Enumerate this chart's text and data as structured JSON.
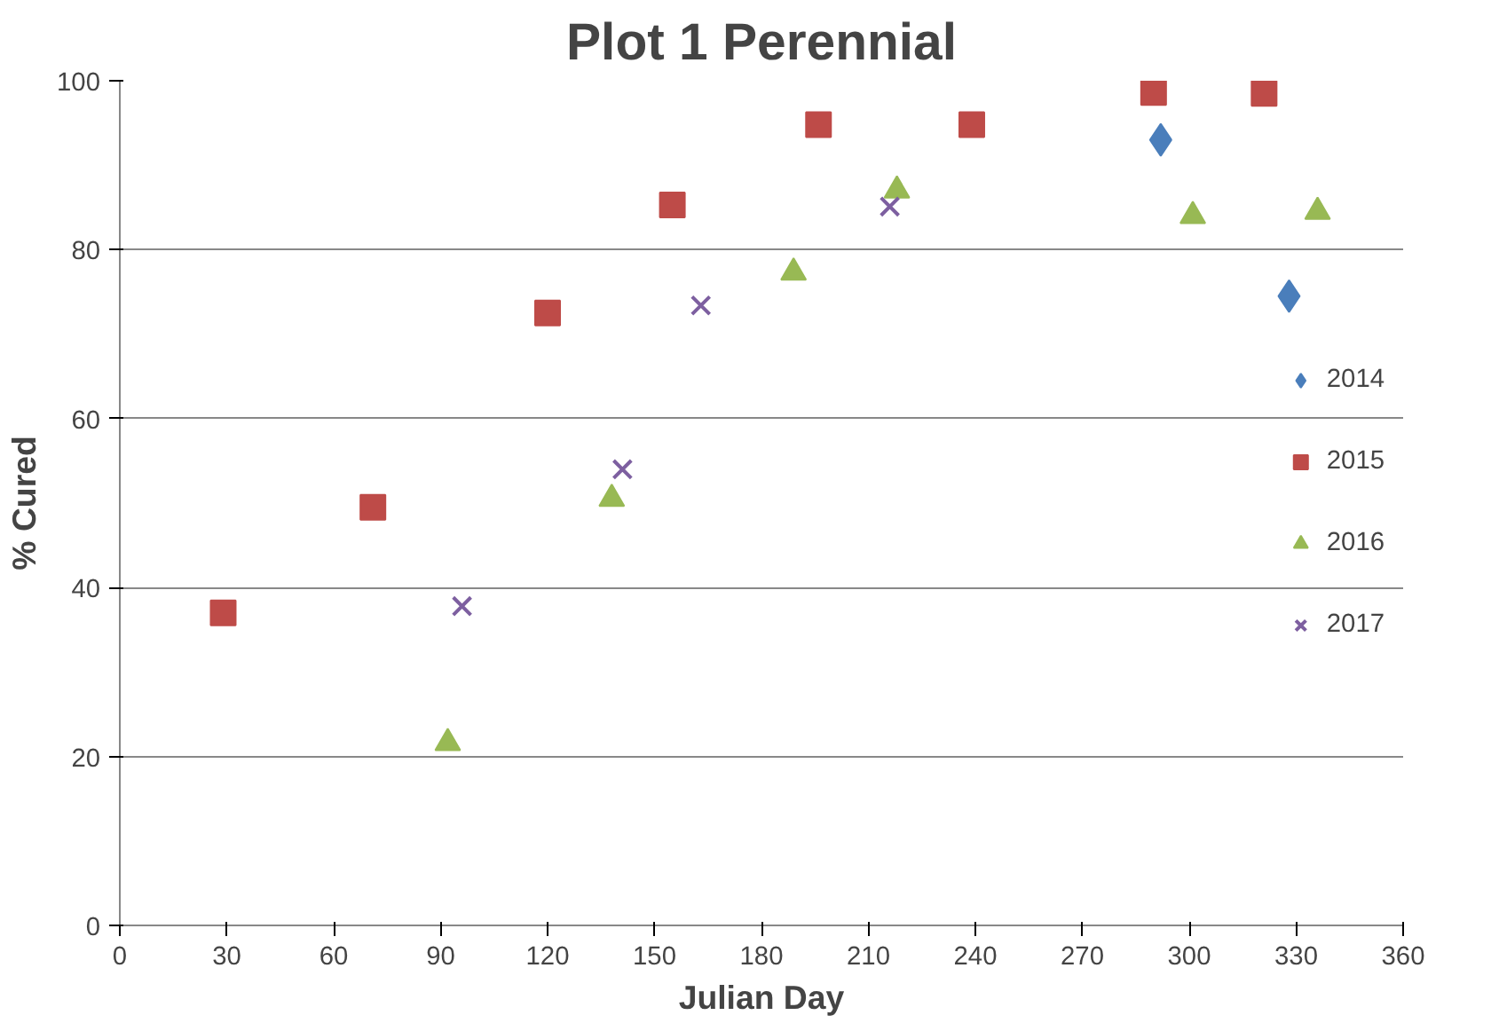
{
  "chart_data": {
    "type": "scatter",
    "title": "Plot 1 Perennial",
    "xlabel": "Julian Day",
    "ylabel": "% Cured",
    "xlim": [
      0,
      360
    ],
    "xticks": [
      0,
      30,
      60,
      90,
      120,
      150,
      180,
      210,
      240,
      270,
      300,
      330,
      360
    ],
    "ylim": [
      0,
      100
    ],
    "yticks": [
      0,
      20,
      40,
      60,
      80,
      100
    ],
    "grid": "y",
    "legend": "right",
    "series": [
      {
        "name": "2014",
        "color": "#4a7ebb",
        "marker": "diamond",
        "x": [
          292,
          328
        ],
        "values": [
          93,
          74.5
        ]
      },
      {
        "name": "2015",
        "color": "#be4b48",
        "marker": "square",
        "x": [
          29,
          71,
          120,
          155,
          196,
          239,
          290,
          321
        ],
        "values": [
          37,
          49.5,
          72.5,
          85.3,
          94.8,
          94.8,
          98.6,
          98.5
        ]
      },
      {
        "name": "2016",
        "color": "#98b954",
        "marker": "triangle",
        "x": [
          92,
          138,
          189,
          218,
          301,
          336
        ],
        "values": [
          21.6,
          50.5,
          77.3,
          87,
          84,
          84.5
        ]
      },
      {
        "name": "2017",
        "color": "#7d5fa0",
        "marker": "cross",
        "x": [
          96,
          141,
          163,
          216
        ],
        "values": [
          37.8,
          54,
          73.4,
          85.1
        ]
      }
    ]
  }
}
